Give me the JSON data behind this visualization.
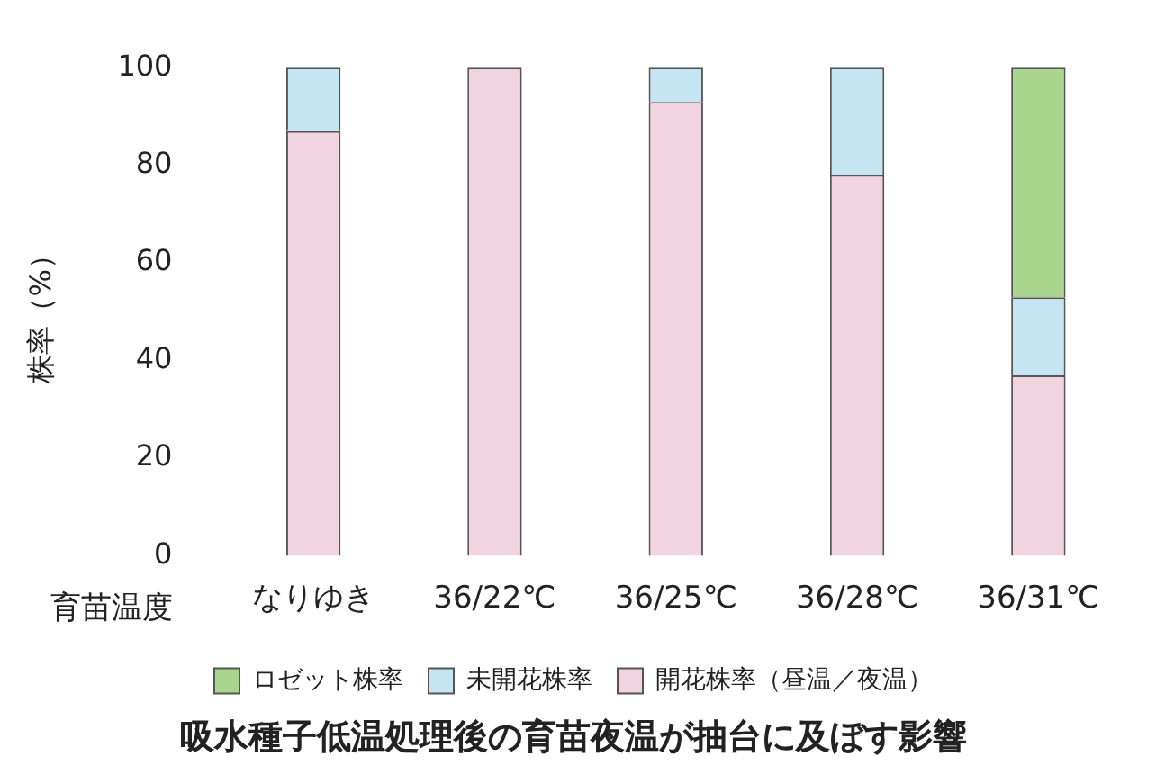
{
  "chart_data": {
    "type": "bar",
    "stacked": true,
    "title": "吸水種子低温処理後の育苗夜温が抽台に及ぼす影響",
    "xlabel": "育苗温度",
    "ylabel": "株率（%）",
    "categories": [
      "なりゆき",
      "36/22℃",
      "36/25℃",
      "36/28℃",
      "36/31℃"
    ],
    "series": [
      {
        "name": "開花株率（昼温／夜温）",
        "color": "#f2d4e1",
        "values": [
          87,
          100,
          93,
          78,
          37
        ]
      },
      {
        "name": "未開花株率",
        "color": "#c6e5f3",
        "values": [
          13,
          0,
          7,
          22,
          16
        ]
      },
      {
        "name": "ロゼット株率",
        "color": "#a9d68c",
        "values": [
          0,
          0,
          0,
          0,
          47
        ]
      }
    ],
    "ylim": [
      0,
      100
    ],
    "yticks": [
      0,
      20,
      40,
      60,
      80,
      100
    ],
    "grid": false,
    "legend": "bottom"
  }
}
